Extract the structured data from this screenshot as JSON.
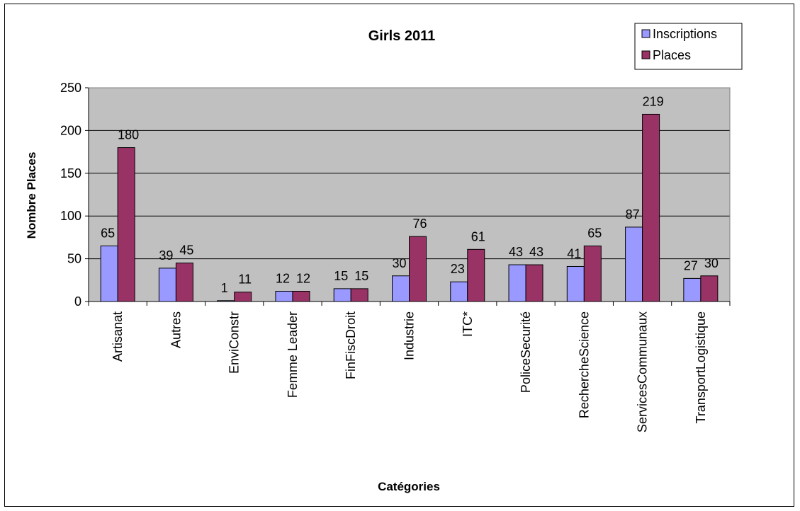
{
  "chart_data": {
    "type": "bar",
    "title": "Girls 2011",
    "xlabel": "Catégories",
    "ylabel": "Nombre Places",
    "ylim": [
      0,
      250
    ],
    "yticks": [
      0,
      50,
      100,
      150,
      200,
      250
    ],
    "grid": true,
    "legend_position": "top-right",
    "categories": [
      "Artisanat",
      "Autres",
      "EnviConstr",
      "Femme Leader",
      "FinFiscDroit",
      "Industrie",
      "ITC*",
      "PoliceSecurité",
      "RechercheScience",
      "ServicesCommunaux",
      "TransportLogistique"
    ],
    "series": [
      {
        "name": "Inscriptions",
        "color": "#9999FF",
        "values": [
          65,
          39,
          1,
          12,
          15,
          30,
          23,
          43,
          41,
          87,
          27
        ]
      },
      {
        "name": "Places",
        "color": "#993366",
        "values": [
          180,
          45,
          11,
          12,
          15,
          76,
          61,
          43,
          65,
          219,
          30
        ]
      }
    ],
    "plot_background": "#C0C0C0"
  }
}
